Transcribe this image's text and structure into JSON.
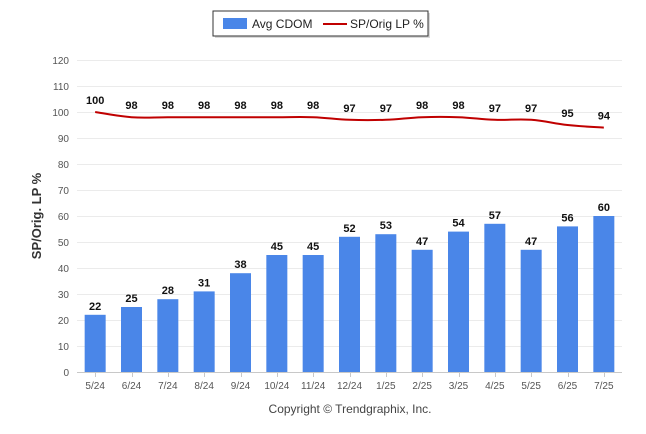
{
  "chart_data": {
    "type": "bar",
    "title": "",
    "xlabel": "",
    "ylabel": "SP/Orig. LP %",
    "ylim": [
      0,
      120
    ],
    "yticks": [
      0,
      10,
      20,
      30,
      40,
      50,
      60,
      70,
      80,
      90,
      100,
      110,
      120
    ],
    "grid": true,
    "legend_position": "top-center",
    "categories": [
      "5/24",
      "6/24",
      "7/24",
      "8/24",
      "9/24",
      "10/24",
      "11/24",
      "12/24",
      "1/25",
      "2/25",
      "3/25",
      "4/25",
      "5/25",
      "6/25",
      "7/25"
    ],
    "series": [
      {
        "name": "Avg CDOM",
        "type": "bar",
        "color": "#4a86e8",
        "values": [
          22,
          25,
          28,
          31,
          38,
          45,
          45,
          52,
          53,
          47,
          54,
          57,
          47,
          56,
          60
        ]
      },
      {
        "name": "SP/Orig LP %",
        "type": "line",
        "color": "#c00000",
        "values": [
          100,
          98,
          98,
          98,
          98,
          98,
          98,
          97,
          97,
          98,
          98,
          97,
          97,
          95,
          94
        ]
      }
    ]
  },
  "footer": "Copyright © Trendgraphix, Inc."
}
